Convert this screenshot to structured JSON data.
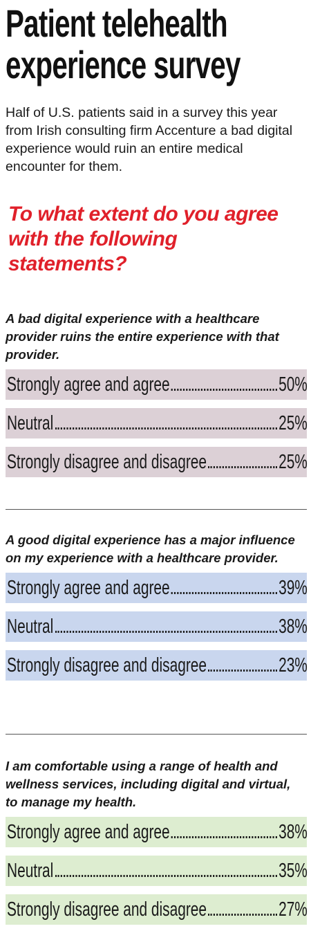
{
  "title": "Patient telehealth experience survey",
  "intro": "Half of U.S. patients said in a survey this year from Irish consulting firm Accenture a bad digital experience would ruin an entire medical encounter for them.",
  "question": "To what extent do you agree with the following statements?",
  "chart_data": {
    "type": "table",
    "sections": [
      {
        "statement": "A bad digital experience with a healthcare provider ruins the entire experience with that provider.",
        "color": "#dcd0d6",
        "rows": [
          {
            "label": "Strongly agree and agree",
            "value": 50,
            "display": "50%"
          },
          {
            "label": "Neutral",
            "value": 25,
            "display": "25%"
          },
          {
            "label": "Strongly disagree and disagree",
            "value": 25,
            "display": "25%"
          }
        ]
      },
      {
        "statement": "A good digital experience has a major influence on my experience with a healthcare provider.",
        "color": "#c9d6ee",
        "rows": [
          {
            "label": "Strongly agree and agree",
            "value": 39,
            "display": "39%"
          },
          {
            "label": "Neutral",
            "value": 38,
            "display": "38%"
          },
          {
            "label": "Strongly disagree and disagree",
            "value": 23,
            "display": "23%"
          }
        ]
      },
      {
        "statement": "I am comfortable using a range of health and wellness services, including digital and virtual, to manage my health.",
        "color": "#ddedd0",
        "rows": [
          {
            "label": "Strongly agree and agree",
            "value": 38,
            "display": "38%"
          },
          {
            "label": "Neutral",
            "value": 35,
            "display": "35%"
          },
          {
            "label": "Strongly disagree and disagree",
            "value": 27,
            "display": "27%"
          }
        ]
      }
    ]
  }
}
